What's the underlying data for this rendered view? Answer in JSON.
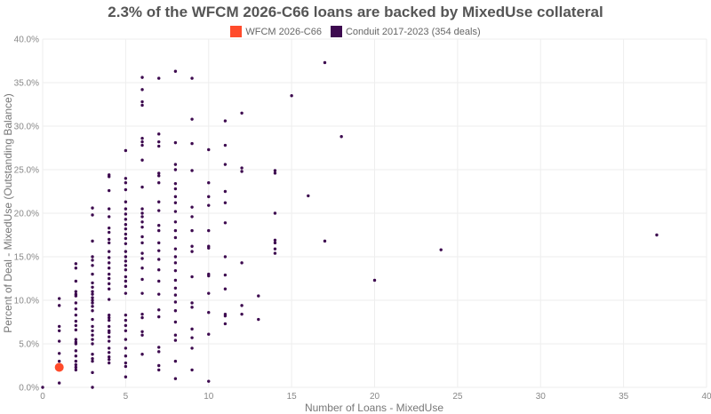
{
  "chart_data": {
    "type": "scatter",
    "title": "2.3% of the WFCM 2026-C66 loans are backed by MixedUse collateral",
    "xlabel": "Number of Loans - MixedUse",
    "ylabel": "Percent of Deal - MixedUse (Outstanding Balance)",
    "xlim": [
      0,
      40
    ],
    "ylim": [
      0,
      40
    ],
    "x_ticks": [
      "0",
      "5",
      "10",
      "15",
      "20",
      "25",
      "30",
      "35",
      "40"
    ],
    "y_ticks": [
      "0.0%",
      "5.0%",
      "10.0%",
      "15.0%",
      "20.0%",
      "25.0%",
      "30.0%",
      "35.0%",
      "40.0%"
    ],
    "grid": true,
    "legend_placement": "top-center",
    "series": [
      {
        "name": "WFCM 2026-C66",
        "color": "#ff4b2b",
        "points": [
          [
            1,
            2.3
          ]
        ]
      },
      {
        "name": "Conduit 2017-2023 (354 deals)",
        "color": "#3d0a4f",
        "points_by_x": {
          "0": [
            0.0
          ],
          "1": [
            10.2,
            9.4,
            7.0,
            6.5,
            5.3,
            3.9,
            3.0,
            0.5
          ],
          "2": [
            14.2,
            13.7,
            12.2,
            11.0,
            10.7,
            10.5,
            9.7,
            9.0,
            8.3,
            7.6,
            7.1,
            6.6,
            5.5,
            5.2,
            5.0,
            4.2,
            3.6,
            3.0,
            2.6,
            2.3,
            2.0
          ],
          "3": [
            20.6,
            19.8,
            16.8,
            15.0,
            14.6,
            14.0,
            13.0,
            12.0,
            11.5,
            11.0,
            10.7,
            10.3,
            10.0,
            9.7,
            9.3,
            8.8,
            7.8,
            7.0,
            6.5,
            6.0,
            5.5,
            5.0,
            3.8,
            3.3,
            3.0,
            1.7,
            0.0
          ],
          "4": [
            24.4,
            24.2,
            22.6,
            20.5,
            19.6,
            18.3,
            17.8,
            17.0,
            16.6,
            15.6,
            14.9,
            14.3,
            13.7,
            13.0,
            12.5,
            11.9,
            11.3,
            10.1,
            8.3,
            8.0,
            7.7,
            7.0,
            6.5,
            6.3,
            5.8,
            5.3,
            4.5,
            4.0,
            3.5,
            3.2,
            2.8
          ],
          "5": [
            27.2,
            24.0,
            23.5,
            22.7,
            21.3,
            20.5,
            19.9,
            19.3,
            18.7,
            18.2,
            17.6,
            17.1,
            16.5,
            15.6,
            15.0,
            14.5,
            14.0,
            13.5,
            12.7,
            12.2,
            11.6,
            10.8,
            8.3,
            7.7,
            7.1,
            6.5,
            5.5,
            4.5,
            3.6,
            2.8,
            2.4,
            1.2
          ],
          "6": [
            35.6,
            34.2,
            32.8,
            32.4,
            28.6,
            28.2,
            27.8,
            26.1,
            23.0,
            20.5,
            20.0,
            19.6,
            19.0,
            18.4,
            17.3,
            16.6,
            15.4,
            14.8,
            13.7,
            12.4,
            10.8,
            8.4,
            8.0,
            6.4,
            6.0,
            3.8
          ],
          "7": [
            35.5,
            29.1,
            28.2,
            27.7,
            24.6,
            24.3,
            23.5,
            21.3,
            20.3,
            18.6,
            18.0,
            16.6,
            15.7,
            14.7,
            13.5,
            12.2,
            10.7,
            8.9,
            8.1,
            4.6,
            4.1,
            2.5,
            2.0
          ],
          "8": [
            36.3,
            28.1,
            25.6,
            25.0,
            23.4,
            22.8,
            21.9,
            21.2,
            20.2,
            19.0,
            18.0,
            17.2,
            15.9,
            15.0,
            14.3,
            13.4,
            12.3,
            11.4,
            10.6,
            9.8,
            8.8,
            7.5,
            6.0,
            5.4,
            3.0,
            1.0
          ],
          "9": [
            35.5,
            30.8,
            28.0,
            24.9,
            20.7,
            19.6,
            18.0,
            16.2,
            15.6,
            12.7,
            9.7,
            9.2,
            6.7,
            5.7,
            4.5,
            2.0
          ],
          "10": [
            27.3,
            23.5,
            21.9,
            20.9,
            18.0,
            16.2,
            16.0,
            13.0,
            12.8,
            10.8,
            8.6,
            6.1,
            0.7
          ],
          "11": [
            30.6,
            27.8,
            25.6,
            22.5,
            21.2,
            18.9,
            15.0,
            12.9,
            11.3,
            8.4,
            8.2,
            7.3
          ],
          "12": [
            31.5,
            25.2,
            24.8,
            14.3,
            9.4,
            8.4
          ],
          "13": [
            10.5,
            7.8
          ],
          "14": [
            24.9,
            24.6,
            20.0,
            16.9,
            16.6,
            15.9,
            15.4
          ],
          "15": [
            33.5
          ],
          "16": [
            22.0
          ],
          "17": [
            37.3,
            16.8
          ],
          "18": [
            28.8
          ],
          "20": [
            12.3
          ],
          "24": [
            15.8
          ],
          "37": [
            17.5
          ]
        }
      }
    ]
  }
}
